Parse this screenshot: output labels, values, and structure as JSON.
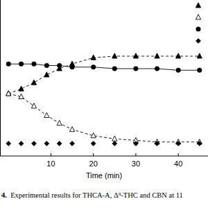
{
  "chart_data": {
    "type": "scatter",
    "x_label": "Time (min)",
    "caption": "4.  Experimental results for THCA-A, Δ⁹-THC and CBN at 11",
    "x": [
      0,
      3,
      6,
      9,
      12,
      15,
      20,
      25,
      30,
      35,
      40,
      45
    ],
    "series": [
      {
        "color": "#000000",
        "marker": "triangle",
        "line_style": "dashed",
        "values": [
          40,
          43,
          47,
          52,
          56,
          59,
          63,
          64,
          64,
          64,
          64,
          64
        ]
      },
      {
        "color": "#000000",
        "marker": "open-triangle",
        "line_style": "dashed",
        "values": [
          40,
          38,
          32,
          26,
          21,
          17,
          13,
          11,
          10,
          9,
          9,
          9
        ]
      },
      {
        "color": "#000000",
        "marker": "circle",
        "line_style": "solid",
        "values": [
          59,
          59,
          59,
          58,
          58,
          57,
          57,
          56,
          56,
          56,
          55,
          55
        ]
      },
      {
        "color": "#000000",
        "marker": "diamond",
        "line_style": "none",
        "values": [
          8,
          8,
          8,
          8,
          8,
          8,
          8,
          8,
          8,
          8,
          8,
          8
        ]
      }
    ],
    "xlim": [
      -2,
      47
    ],
    "xticks": [
      10,
      20,
      30,
      40
    ],
    "ylim": [
      0,
      100
    ],
    "tick_labels": "x",
    "legend": "upper right",
    "grid": false
  }
}
